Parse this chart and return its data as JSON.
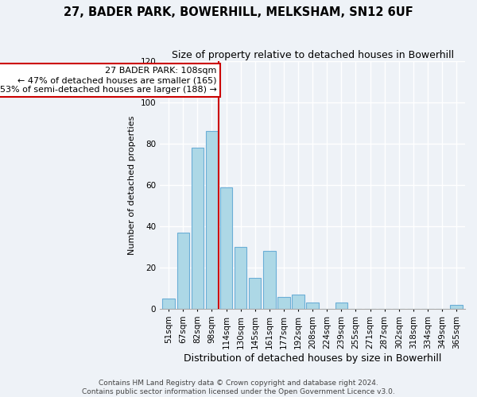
{
  "title": "27, BADER PARK, BOWERHILL, MELKSHAM, SN12 6UF",
  "subtitle": "Size of property relative to detached houses in Bowerhill",
  "xlabel": "Distribution of detached houses by size in Bowerhill",
  "ylabel": "Number of detached properties",
  "bar_labels": [
    "51sqm",
    "67sqm",
    "82sqm",
    "98sqm",
    "114sqm",
    "130sqm",
    "145sqm",
    "161sqm",
    "177sqm",
    "192sqm",
    "208sqm",
    "224sqm",
    "239sqm",
    "255sqm",
    "271sqm",
    "287sqm",
    "302sqm",
    "318sqm",
    "334sqm",
    "349sqm",
    "365sqm"
  ],
  "bar_values": [
    5,
    37,
    78,
    86,
    59,
    30,
    15,
    28,
    6,
    7,
    3,
    0,
    3,
    0,
    0,
    0,
    0,
    0,
    0,
    0,
    2
  ],
  "bar_color": "#add8e6",
  "bar_edge_color": "#6baed6",
  "reference_line_label": "27 BADER PARK: 108sqm",
  "annotation_line1": "← 47% of detached houses are smaller (165)",
  "annotation_line2": "53% of semi-detached houses are larger (188) →",
  "annotation_box_color": "#ffffff",
  "annotation_box_edge": "#cc0000",
  "ref_line_color": "#cc0000",
  "ref_line_x": 3.45,
  "ylim": [
    0,
    120
  ],
  "yticks": [
    0,
    20,
    40,
    60,
    80,
    100,
    120
  ],
  "footer1": "Contains HM Land Registry data © Crown copyright and database right 2024.",
  "footer2": "Contains public sector information licensed under the Open Government Licence v3.0.",
  "background_color": "#eef2f7",
  "grid_color": "#ffffff",
  "title_fontsize": 10.5,
  "subtitle_fontsize": 9,
  "ylabel_fontsize": 8,
  "xlabel_fontsize": 9,
  "tick_fontsize": 7.5,
  "footer_fontsize": 6.5
}
